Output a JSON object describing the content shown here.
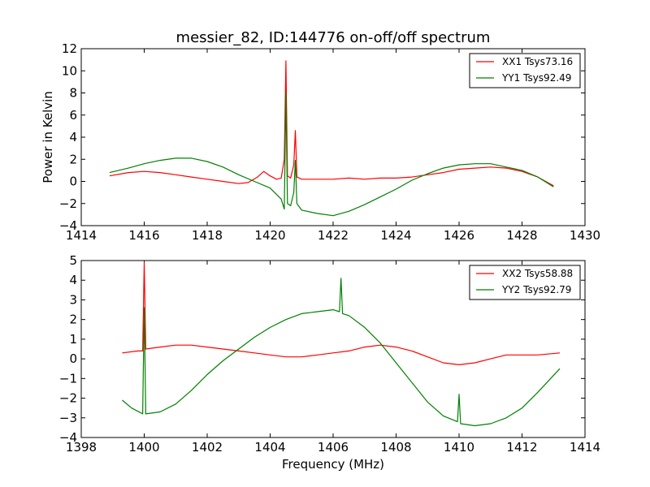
{
  "title": "messier_82, ID:144776 on-off/off spectrum",
  "ylabel": "Power in Kelvin",
  "xlabel": "Frequency (MHz)",
  "colors": {
    "series1": "#ff0000",
    "series2": "#008000"
  },
  "chart_data": [
    {
      "type": "line",
      "xlim": [
        1414,
        1430
      ],
      "ylim": [
        -4,
        12
      ],
      "xticks": [
        1414,
        1416,
        1418,
        1420,
        1422,
        1424,
        1426,
        1428,
        1430
      ],
      "yticks": [
        -4,
        -2,
        0,
        2,
        4,
        6,
        8,
        10,
        12
      ],
      "legend_position": "top-right",
      "series": [
        {
          "name": "XX1 Tsys73.16",
          "color": "#ff0000",
          "x": [
            1414.9,
            1415.5,
            1416,
            1416.5,
            1417,
            1417.5,
            1418,
            1418.5,
            1419,
            1419.3,
            1419.6,
            1419.8,
            1420.0,
            1420.2,
            1420.35,
            1420.45,
            1420.5,
            1420.55,
            1420.65,
            1420.75,
            1420.8,
            1420.85,
            1421,
            1421.5,
            1422,
            1422.5,
            1423,
            1423.5,
            1424,
            1424.5,
            1425,
            1425.5,
            1426,
            1426.5,
            1427,
            1427.5,
            1428,
            1428.5,
            1429
          ],
          "y": [
            0.5,
            0.8,
            0.9,
            0.8,
            0.6,
            0.4,
            0.2,
            0.0,
            -0.2,
            -0.1,
            0.4,
            0.9,
            0.5,
            0.2,
            0.3,
            2.0,
            10.9,
            0.5,
            0.3,
            1.5,
            4.6,
            0.4,
            0.2,
            0.2,
            0.2,
            0.3,
            0.2,
            0.3,
            0.3,
            0.4,
            0.6,
            0.8,
            1.1,
            1.2,
            1.3,
            1.2,
            0.9,
            0.4,
            -0.4
          ]
        },
        {
          "name": "YY1 Tsys92.49",
          "color": "#008000",
          "x": [
            1414.9,
            1415.5,
            1416,
            1416.5,
            1417,
            1417.5,
            1418,
            1418.5,
            1419,
            1419.5,
            1420,
            1420.35,
            1420.45,
            1420.5,
            1420.55,
            1420.65,
            1420.75,
            1420.8,
            1420.85,
            1421,
            1421.5,
            1422,
            1422.5,
            1423,
            1423.5,
            1424,
            1424.5,
            1425,
            1425.5,
            1426,
            1426.5,
            1427,
            1427.5,
            1428,
            1428.5,
            1429
          ],
          "y": [
            0.8,
            1.2,
            1.6,
            1.9,
            2.1,
            2.1,
            1.8,
            1.3,
            0.6,
            0.0,
            -0.6,
            -1.6,
            -2.5,
            8.0,
            -2.0,
            -2.2,
            -1.0,
            1.9,
            -2.0,
            -2.6,
            -2.9,
            -3.1,
            -2.7,
            -2.1,
            -1.4,
            -0.7,
            0.1,
            0.7,
            1.2,
            1.5,
            1.6,
            1.6,
            1.3,
            1.0,
            0.4,
            -0.5
          ]
        }
      ]
    },
    {
      "type": "line",
      "xlim": [
        1398,
        1414
      ],
      "ylim": [
        -4,
        5
      ],
      "xticks": [
        1398,
        1400,
        1402,
        1404,
        1406,
        1408,
        1410,
        1412,
        1414
      ],
      "yticks": [
        -4,
        -3,
        -2,
        -1,
        0,
        1,
        2,
        3,
        4,
        5
      ],
      "legend_position": "top-right",
      "series": [
        {
          "name": "XX2 Tsys58.88",
          "color": "#ff0000",
          "x": [
            1399.3,
            1399.8,
            1399.95,
            1400.0,
            1400.05,
            1400.5,
            1401,
            1401.5,
            1402,
            1402.5,
            1403,
            1403.5,
            1404,
            1404.5,
            1405,
            1405.5,
            1406,
            1406.5,
            1407,
            1407.5,
            1408,
            1408.5,
            1409,
            1409.5,
            1410,
            1410.5,
            1411,
            1411.5,
            1412,
            1412.5,
            1413.2
          ],
          "y": [
            0.3,
            0.4,
            0.4,
            4.9,
            0.5,
            0.6,
            0.7,
            0.7,
            0.6,
            0.5,
            0.4,
            0.3,
            0.2,
            0.1,
            0.1,
            0.2,
            0.3,
            0.4,
            0.6,
            0.7,
            0.6,
            0.4,
            0.1,
            -0.2,
            -0.3,
            -0.2,
            0.0,
            0.2,
            0.2,
            0.2,
            0.3
          ]
        },
        {
          "name": "YY2 Tsys92.79",
          "color": "#008000",
          "x": [
            1399.3,
            1399.6,
            1399.95,
            1400.0,
            1400.05,
            1400.5,
            1401,
            1401.5,
            1402,
            1402.5,
            1403,
            1403.5,
            1404,
            1404.5,
            1405,
            1405.5,
            1406,
            1406.2,
            1406.25,
            1406.3,
            1406.5,
            1407,
            1407.5,
            1408,
            1408.5,
            1409,
            1409.5,
            1409.95,
            1410.0,
            1410.05,
            1410.5,
            1411,
            1411.5,
            1412,
            1412.5,
            1413.2
          ],
          "y": [
            -2.1,
            -2.5,
            -2.8,
            2.6,
            -2.8,
            -2.7,
            -2.3,
            -1.6,
            -0.8,
            -0.1,
            0.5,
            1.1,
            1.6,
            2.0,
            2.3,
            2.4,
            2.5,
            2.4,
            4.1,
            2.3,
            2.2,
            1.6,
            0.8,
            -0.2,
            -1.2,
            -2.2,
            -2.9,
            -3.2,
            -1.8,
            -3.3,
            -3.4,
            -3.3,
            -3.0,
            -2.5,
            -1.7,
            -0.5
          ]
        }
      ]
    }
  ]
}
